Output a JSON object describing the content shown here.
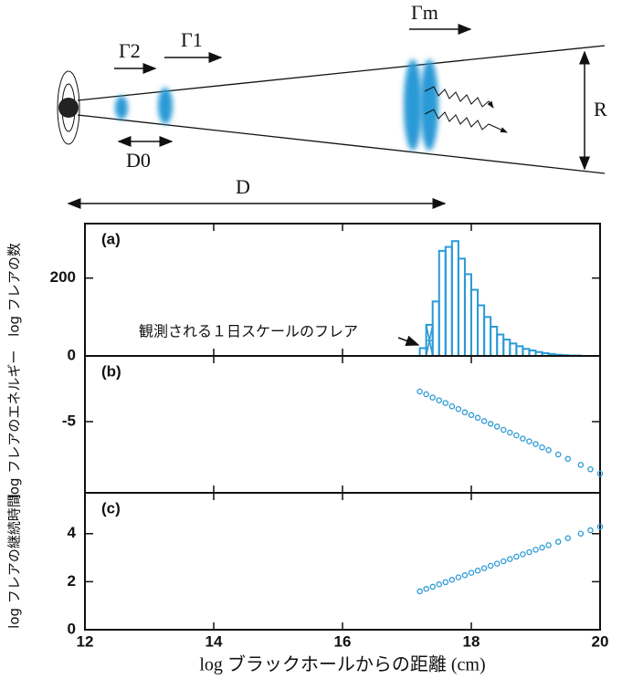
{
  "diagram": {
    "labels": [
      "Γ2",
      "Γ1",
      "Γm",
      "R",
      "D0",
      "D"
    ]
  },
  "chart_data": [
    {
      "type": "histogram",
      "panel_label": "(a)",
      "ylabel": "log フレアの数",
      "annotation": "観測される１日スケールのフレア",
      "bins": [
        17.2,
        17.3,
        17.4,
        17.5,
        17.6,
        17.7,
        17.8,
        17.9,
        18.0,
        18.1,
        18.2,
        18.3,
        18.4,
        18.5,
        18.6,
        18.7,
        18.8,
        18.9,
        19.0,
        19.1,
        19.2,
        19.3,
        19.4,
        19.5,
        19.6,
        19.7,
        19.8
      ],
      "values": [
        20,
        80,
        140,
        270,
        280,
        295,
        250,
        210,
        170,
        130,
        100,
        75,
        55,
        42,
        32,
        25,
        18,
        14,
        10,
        7,
        5,
        3,
        2,
        1,
        1,
        0
      ],
      "hatched_bins": [
        1
      ],
      "color": "#2a9ad6",
      "xlim": [
        12,
        20
      ],
      "xticks": [
        12,
        14,
        16,
        18,
        20
      ],
      "ylim": [
        0,
        340
      ],
      "yticks": [
        0,
        200
      ]
    },
    {
      "type": "scatter",
      "panel_label": "(b)",
      "ylabel": "log フレアのエネルギー",
      "color": "#2a9ad6",
      "x": [
        17.2,
        17.3,
        17.4,
        17.5,
        17.6,
        17.7,
        17.8,
        17.9,
        18.0,
        18.1,
        18.2,
        18.3,
        18.4,
        18.5,
        18.6,
        18.7,
        18.8,
        18.9,
        19.0,
        19.1,
        19.2,
        19.35,
        19.5,
        19.7,
        19.85,
        20.0
      ],
      "values": [
        -4.45,
        -4.5,
        -4.56,
        -4.61,
        -4.66,
        -4.72,
        -4.77,
        -4.83,
        -4.88,
        -4.93,
        -4.99,
        -5.04,
        -5.09,
        -5.15,
        -5.2,
        -5.25,
        -5.31,
        -5.36,
        -5.41,
        -5.47,
        -5.52,
        -5.6,
        -5.68,
        -5.79,
        -5.87,
        -5.95
      ],
      "xlim": [
        12,
        20
      ],
      "xticks": [
        12,
        14,
        16,
        18,
        20
      ],
      "ylim": [
        -6.3,
        -3.8
      ],
      "yticks": [
        -5
      ]
    },
    {
      "type": "scatter",
      "panel_label": "(c)",
      "ylabel": "log フレアの継続時間",
      "xlabel": "log ブラックホールからの距離 (cm)",
      "color": "#2a9ad6",
      "x": [
        17.2,
        17.3,
        17.4,
        17.5,
        17.6,
        17.7,
        17.8,
        17.9,
        18.0,
        18.1,
        18.2,
        18.3,
        18.4,
        18.5,
        18.6,
        18.7,
        18.8,
        18.9,
        19.0,
        19.1,
        19.2,
        19.35,
        19.5,
        19.7,
        19.85,
        20.0
      ],
      "values": [
        1.6,
        1.7,
        1.79,
        1.89,
        1.98,
        2.08,
        2.18,
        2.27,
        2.37,
        2.46,
        2.56,
        2.66,
        2.75,
        2.85,
        2.94,
        3.04,
        3.14,
        3.23,
        3.33,
        3.42,
        3.52,
        3.66,
        3.81,
        4.0,
        4.14,
        4.29
      ],
      "xlim": [
        12,
        20
      ],
      "xticks": [
        12,
        14,
        16,
        18,
        20
      ],
      "ylim": [
        0,
        5.7
      ],
      "yticks": [
        0,
        2,
        4
      ]
    }
  ]
}
